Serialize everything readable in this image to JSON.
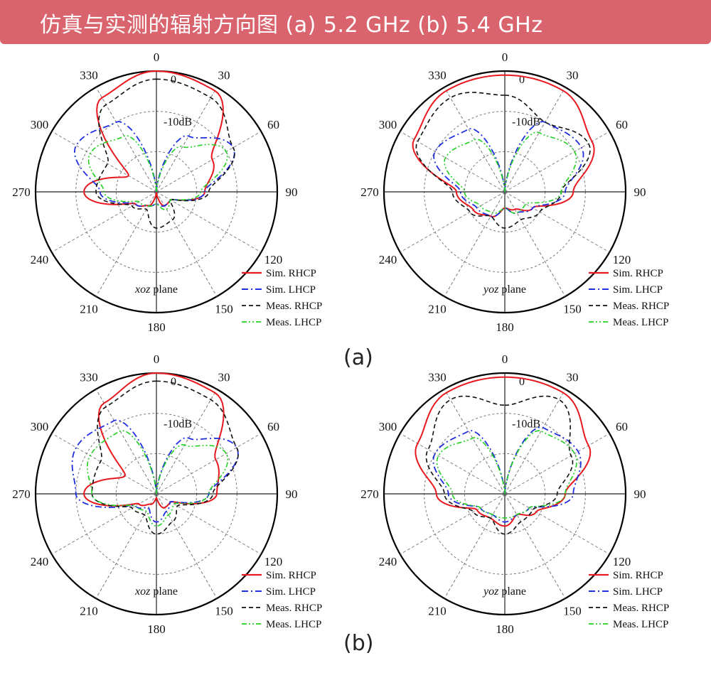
{
  "header": {
    "title": "仿真与实测的辐射方向图 (a) 5.2 GHz (b) 5.4 GHz"
  },
  "panels": {
    "a_label": "(a)",
    "b_label": "(b)"
  },
  "colors": {
    "banner": "#d9646e",
    "sim_rhcp": "#e8191e",
    "sim_lhcp": "#1f2fe0",
    "meas_rhcp": "#111111",
    "meas_lhcp": "#22d022"
  },
  "chart_data": [
    {
      "type": "polar-line",
      "panel": "(a)",
      "plane_label": "xoz plane",
      "angle_ticks": [
        "0",
        "30",
        "60",
        "90",
        "120",
        "150",
        "180",
        "210",
        "240",
        "270",
        "300",
        "330"
      ],
      "ring_labels": [
        "0",
        "-10dB"
      ],
      "rlim_db": [
        -30,
        0
      ],
      "legend": [
        "Sim. RHCP",
        "Sim. LHCP",
        "Meas. RHCP",
        "Meas. LHCP"
      ],
      "theta_deg": [
        0,
        30,
        60,
        90,
        120,
        150,
        180,
        210,
        240,
        270,
        300,
        330
      ],
      "series": [
        {
          "name": "Sim. RHCP",
          "values": [
            0,
            -1,
            -14,
            -18,
            -26,
            -26,
            -30,
            -26,
            -24,
            -12,
            -22,
            -3
          ]
        },
        {
          "name": "Sim. LHCP",
          "values": [
            -30,
            -14,
            -8,
            -18,
            -26,
            -26,
            -27,
            -26,
            -24,
            -16,
            -7,
            -10
          ]
        },
        {
          "name": "Meas. RHCP",
          "values": [
            -2,
            -3,
            -8,
            -17,
            -26,
            -22,
            -21,
            -25,
            -23,
            -15,
            -16,
            -5
          ]
        },
        {
          "name": "Meas. LHCP",
          "values": [
            -30,
            -17,
            -10,
            -19,
            -26,
            -25,
            -27,
            -26,
            -25,
            -17,
            -11,
            -14
          ]
        }
      ]
    },
    {
      "type": "polar-line",
      "panel": "(a)",
      "plane_label": "yoz plane",
      "angle_ticks": [
        "0",
        "30",
        "60",
        "90",
        "120",
        "150",
        "180",
        "210",
        "240",
        "270",
        "300",
        "330"
      ],
      "ring_labels": [
        "0",
        "-10dB"
      ],
      "rlim_db": [
        -30,
        0
      ],
      "legend": [
        "Sim. RHCP",
        "Sim. LHCP",
        "Meas. RHCP",
        "Meas. LHCP"
      ],
      "theta_deg": [
        0,
        30,
        60,
        90,
        120,
        150,
        180,
        210,
        240,
        270,
        300,
        330
      ],
      "series": [
        {
          "name": "Sim. RHCP",
          "values": [
            -1,
            -1,
            -5,
            -13,
            -22,
            -25,
            -26,
            -23,
            -21,
            -18,
            -4,
            -1
          ]
        },
        {
          "name": "Sim. LHCP",
          "values": [
            -30,
            -10,
            -8,
            -15,
            -22,
            -24,
            -26,
            -23,
            -22,
            -19,
            -10,
            -12
          ]
        },
        {
          "name": "Meas. RHCP",
          "values": [
            -6,
            -10,
            -6,
            -16,
            -20,
            -22,
            -21,
            -23,
            -20,
            -17,
            -5,
            -3
          ]
        },
        {
          "name": "Meas. LHCP",
          "values": [
            -30,
            -13,
            -10,
            -16,
            -24,
            -24,
            -26,
            -24,
            -23,
            -20,
            -13,
            -15
          ]
        }
      ]
    },
    {
      "type": "polar-line",
      "panel": "(b)",
      "plane_label": "xoz plane",
      "angle_ticks": [
        "0",
        "30",
        "60",
        "90",
        "120",
        "150",
        "180",
        "210",
        "240",
        "270",
        "300",
        "330"
      ],
      "ring_labels": [
        "0",
        "-10dB"
      ],
      "rlim_db": [
        -30,
        0
      ],
      "legend": [
        "Sim. RHCP",
        "Sim. LHCP",
        "Meas. RHCP",
        "Meas. LHCP"
      ],
      "theta_deg": [
        0,
        30,
        60,
        90,
        120,
        150,
        180,
        210,
        240,
        270,
        300,
        330
      ],
      "series": [
        {
          "name": "Sim. RHCP",
          "values": [
            0,
            -1,
            -13,
            -15,
            -26,
            -26,
            -29,
            -27,
            -25,
            -12,
            -21,
            -4
          ]
        },
        {
          "name": "Sim. LHCP",
          "values": [
            -30,
            -14,
            -7,
            -17,
            -26,
            -25,
            -23,
            -26,
            -24,
            -10,
            -7,
            -9
          ]
        },
        {
          "name": "Meas. RHCP",
          "values": [
            -2,
            -3,
            -7,
            -16,
            -24,
            -22,
            -20,
            -24,
            -23,
            -14,
            -14,
            -5
          ]
        },
        {
          "name": "Meas. LHCP",
          "values": [
            -30,
            -16,
            -10,
            -17,
            -25,
            -24,
            -22,
            -25,
            -24,
            -14,
            -11,
            -12
          ]
        }
      ]
    },
    {
      "type": "polar-line",
      "panel": "(b)",
      "plane_label": "yoz plane",
      "angle_ticks": [
        "0",
        "30",
        "60",
        "90",
        "120",
        "150",
        "180",
        "210",
        "240",
        "270",
        "300",
        "330"
      ],
      "ring_labels": [
        "0",
        "-10dB"
      ],
      "rlim_db": [
        -30,
        0
      ],
      "legend": [
        "Sim. RHCP",
        "Sim. LHCP",
        "Meas. RHCP",
        "Meas. LHCP"
      ],
      "theta_deg": [
        0,
        30,
        60,
        90,
        120,
        150,
        180,
        210,
        240,
        270,
        300,
        330
      ],
      "series": [
        {
          "name": "Sim. RHCP",
          "values": [
            -1,
            -1,
            -6,
            -15,
            -21,
            -24,
            -22,
            -23,
            -22,
            -13,
            -5,
            -1
          ]
        },
        {
          "name": "Sim. LHCP",
          "values": [
            -30,
            -11,
            -9,
            -13,
            -23,
            -24,
            -23,
            -24,
            -23,
            -16,
            -10,
            -12
          ]
        },
        {
          "name": "Meas. RHCP",
          "values": [
            -8,
            -3,
            -11,
            -17,
            -22,
            -22,
            -20,
            -23,
            -21,
            -15,
            -8,
            -3
          ]
        },
        {
          "name": "Meas. LHCP",
          "values": [
            -30,
            -12,
            -10,
            -15,
            -23,
            -24,
            -24,
            -24,
            -23,
            -17,
            -11,
            -14
          ]
        }
      ]
    }
  ]
}
